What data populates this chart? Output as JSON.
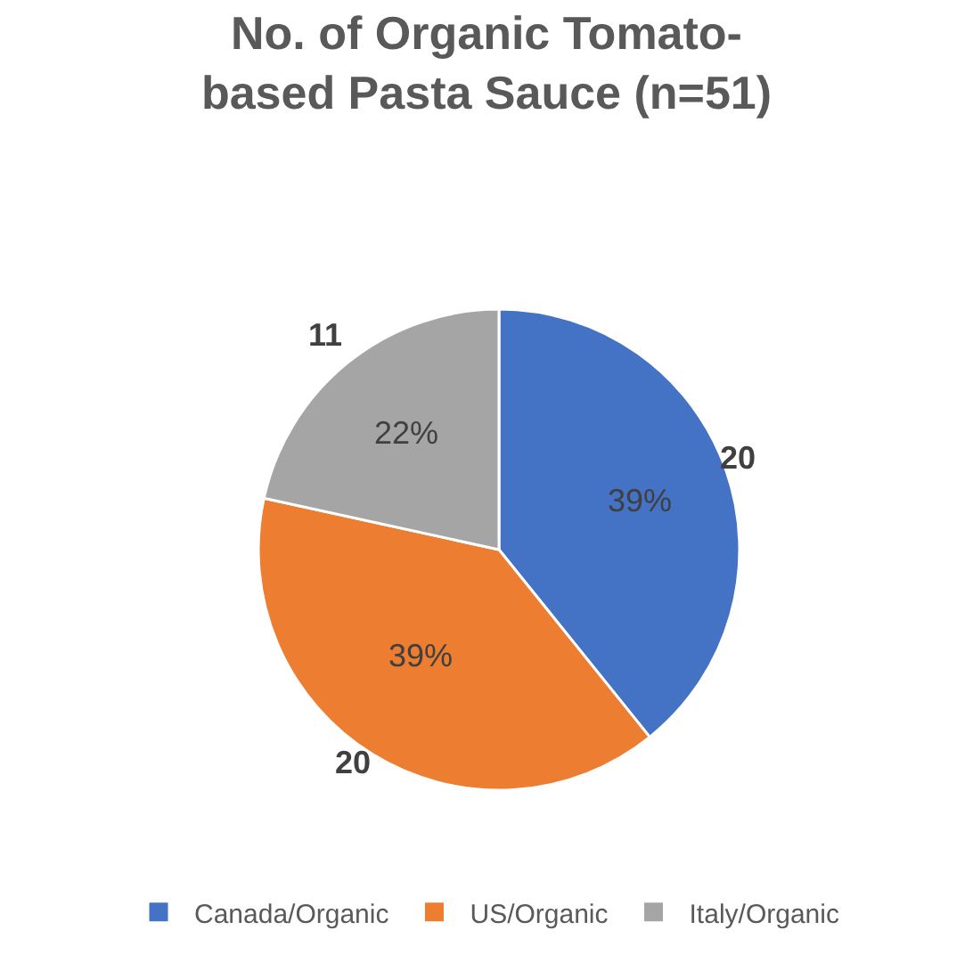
{
  "chart_data": {
    "type": "pie",
    "title": "No. of Organic Tomato-\nbased Pasta Sauce (n=51)",
    "categories": [
      "Canada/Organic",
      "US/Organic",
      "Italy/Organic"
    ],
    "values": [
      20,
      20,
      11
    ],
    "colors": [
      "#4472c4",
      "#ed7d31",
      "#a5a5a5"
    ],
    "data_labels": true,
    "annotations": [
      {
        "text": "39%",
        "x": "Canada/Organic"
      },
      {
        "text": "39%",
        "x": "US/Organic"
      },
      {
        "text": "22%",
        "x": "Italy/Organic"
      }
    ],
    "legend": "bottom"
  }
}
